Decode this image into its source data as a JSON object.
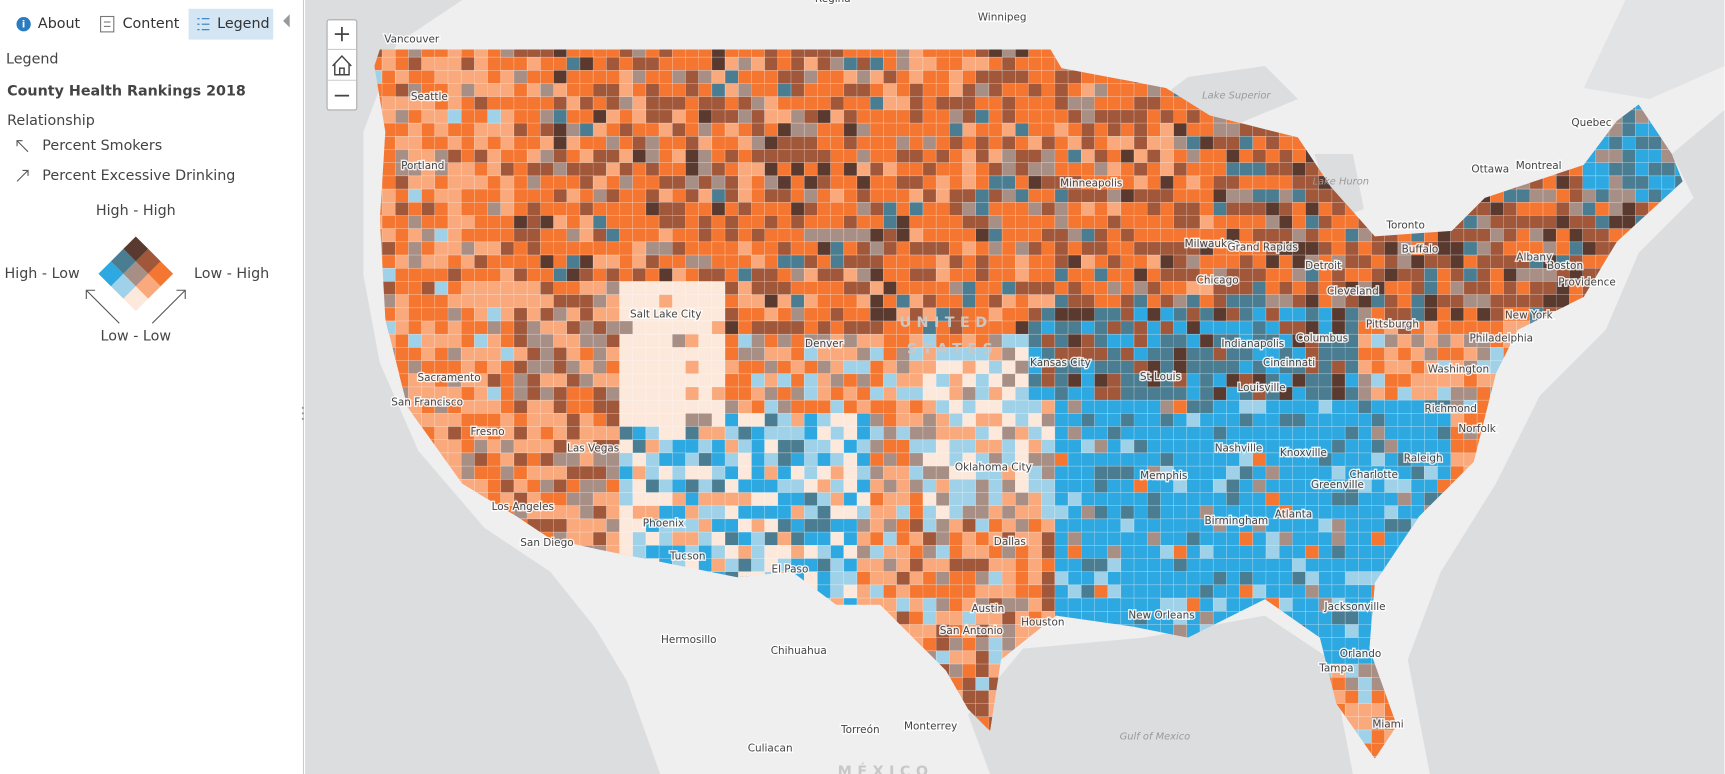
{
  "sidebar": {
    "tabs": [
      "About",
      "Content",
      "Legend"
    ],
    "legend": {
      "heading": "Legend",
      "layer_title": "County Health Rankings 2018",
      "relationship": "Relationship",
      "fields": [
        "Percent Smokers",
        "Percent Excessive Drinking"
      ],
      "corners": {
        "top": "High - High",
        "left": "High - Low",
        "right": "Low - High",
        "bottom": "Low - Low"
      }
    }
  },
  "map": {
    "labels": [
      "Regina",
      "Winnipeg",
      "Vancouver",
      "Seattle",
      "Portland",
      "Sacramento",
      "San Francisco",
      "Fresno",
      "Las Vegas",
      "Los Angeles",
      "San Diego",
      "Phoenix",
      "Tucson",
      "Salt Lake City",
      "Denver",
      "El Paso",
      "Hermosillo",
      "Chihuahua",
      "Culiacan",
      "Torreón",
      "Monterrey",
      "Dallas",
      "Austin",
      "San Antonio",
      "Houston",
      "Oklahoma City",
      "Kansas City",
      "St Louis",
      "Minneapolis",
      "Milwaukee",
      "Chicago",
      "Grand Rapids",
      "Detroit",
      "Indianapolis",
      "Cincinnati",
      "Louisville",
      "Columbus",
      "Cleveland",
      "Pittsburgh",
      "Nashville",
      "Memphis",
      "Birmingham",
      "Atlanta",
      "Knoxville",
      "Charlotte",
      "Greenville",
      "Raleigh",
      "Richmond",
      "Norfolk",
      "Washington",
      "Philadelphia",
      "New York",
      "Boston",
      "Providence",
      "Albany",
      "Buffalo",
      "Toronto",
      "Ottawa",
      "Montreal",
      "Quebec",
      "Jacksonville",
      "Orlando",
      "Tampa",
      "Miami",
      "New Orleans"
    ],
    "water_labels": [
      "Lake Superior",
      "Lake Huron",
      "Gulf of Mexico"
    ],
    "country_labels": [
      "UNITED",
      "STATES",
      "MÉXICO"
    ]
  }
}
